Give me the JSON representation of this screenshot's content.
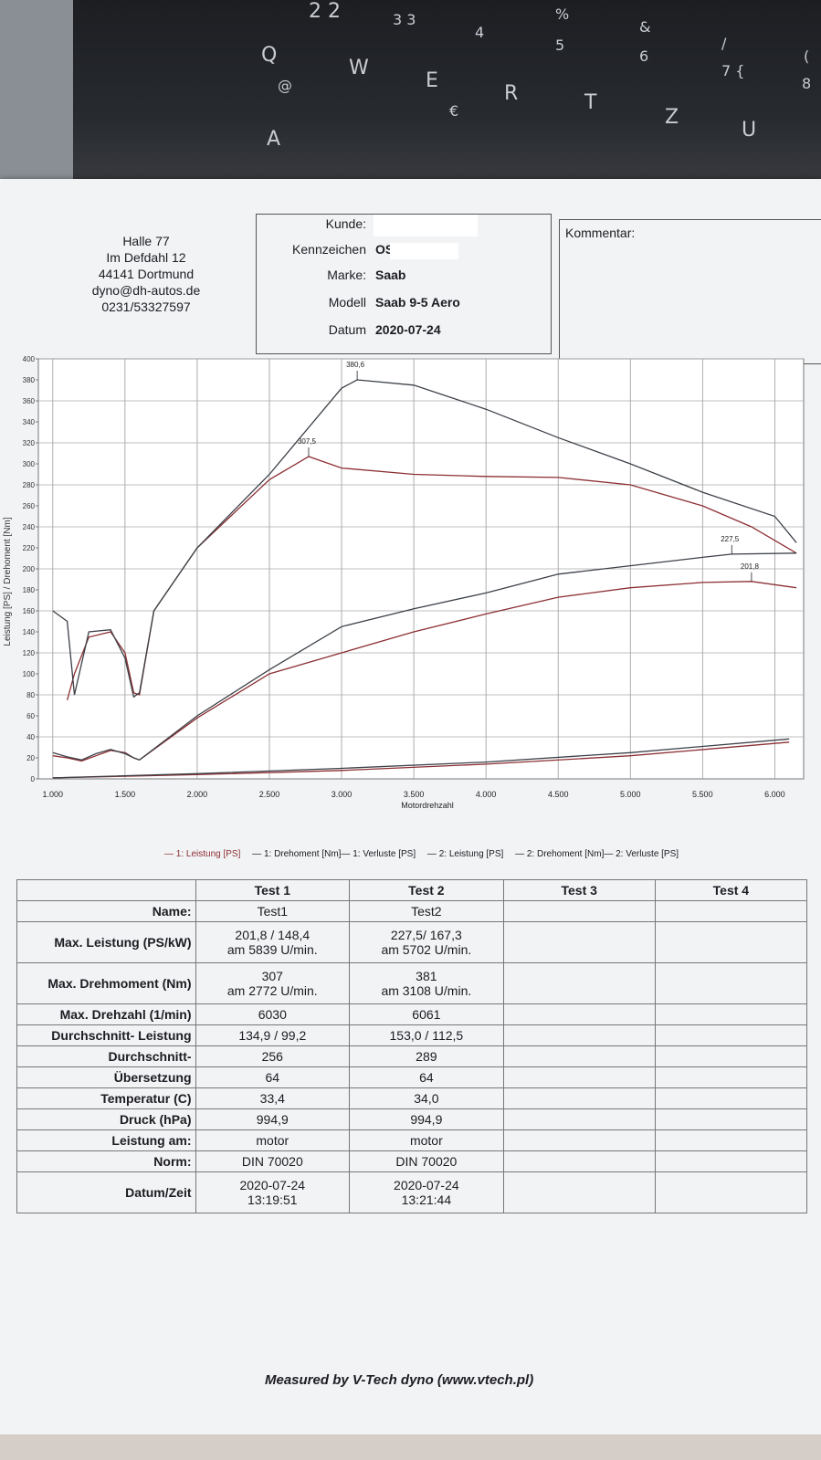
{
  "keyboard": {
    "keys": [
      "2 2",
      "Q",
      "@",
      "A",
      "W",
      "3 3",
      "E",
      "€",
      "4",
      "R",
      "%",
      "5",
      "T",
      "&",
      "6",
      "Z",
      "/",
      "7 {",
      "U",
      "(",
      "8"
    ]
  },
  "address": [
    "Halle 77",
    "Im Defdahl 12",
    "44141 Dortmund",
    "dyno@dh-autos.de",
    "0231/53327597"
  ],
  "vehicle": {
    "kunde_label": "Kunde:",
    "kennzeichen_label": "Kennzeichen",
    "kennzeichen_value": "OS",
    "marke_label": "Marke:",
    "marke_value": "Saab",
    "modell_label": "Modell",
    "modell_value": "Saab 9-5 Aero",
    "datum_label": "Datum",
    "datum_value": "2020-07-24"
  },
  "comment": {
    "label": "Kommentar:"
  },
  "chart_data": {
    "type": "line",
    "xlabel": "Motordrehzahl",
    "ylabel": "Leistung [PS] / Drehoment [Nm]",
    "xlim": [
      900,
      6200
    ],
    "ylim": [
      0,
      400
    ],
    "x_ticks": [
      "1.000",
      "1.500",
      "2.000",
      "2.500",
      "3.000",
      "3.500",
      "4.000",
      "4.500",
      "5.000",
      "5.500",
      "6.000"
    ],
    "x_tick_values": [
      1000,
      1500,
      2000,
      2500,
      3000,
      3500,
      4000,
      4500,
      5000,
      5500,
      6000
    ],
    "y_ticks": [
      0,
      20,
      40,
      60,
      80,
      100,
      120,
      140,
      160,
      180,
      200,
      220,
      240,
      260,
      280,
      300,
      320,
      340,
      360,
      380,
      400
    ],
    "grid": true,
    "series": [
      {
        "name": "1: Leistung [PS]",
        "color": "#8c2f33",
        "x": [
          1000,
          1100,
          1200,
          1300,
          1400,
          1500,
          1560,
          1600,
          2000,
          2500,
          3000,
          3500,
          4000,
          4500,
          5000,
          5500,
          5839,
          6150
        ],
        "y": [
          22,
          20,
          17,
          22,
          27,
          25,
          20,
          18,
          58,
          100,
          120,
          140,
          157,
          173,
          182,
          187,
          188,
          182
        ]
      },
      {
        "name": "1: Drehoment [Nm]",
        "color": "#8c2f33",
        "x": [
          1100,
          1150,
          1250,
          1400,
          1500,
          1560,
          1600,
          1700,
          2000,
          2500,
          2772,
          3000,
          3500,
          4000,
          4500,
          5000,
          5500,
          5839,
          6150
        ],
        "y": [
          75,
          100,
          135,
          140,
          120,
          82,
          80,
          160,
          220,
          285,
          307,
          296,
          290,
          288,
          287,
          280,
          260,
          240,
          215
        ]
      },
      {
        "name": "1: Verluste [PS]",
        "color": "#8c2f33",
        "x": [
          1000,
          2000,
          3000,
          4000,
          5000,
          6100
        ],
        "y": [
          1,
          4,
          8,
          14,
          22,
          35
        ]
      },
      {
        "name": "2: Leistung [PS]",
        "color": "#3c4148",
        "x": [
          1000,
          1100,
          1200,
          1300,
          1400,
          1500,
          1560,
          1600,
          2000,
          2500,
          3000,
          3500,
          4000,
          4500,
          5000,
          5500,
          5702,
          6150
        ],
        "y": [
          25,
          21,
          18,
          24,
          28,
          24,
          20,
          18,
          60,
          104,
          145,
          162,
          177,
          195,
          203,
          211,
          214,
          215
        ]
      },
      {
        "name": "2: Drehoment [Nm]",
        "color": "#3c4148",
        "x": [
          1000,
          1100,
          1150,
          1250,
          1400,
          1500,
          1560,
          1600,
          1700,
          2000,
          2500,
          3000,
          3108,
          3500,
          4000,
          4500,
          5000,
          5500,
          6000,
          6150
        ],
        "y": [
          160,
          150,
          80,
          140,
          142,
          115,
          78,
          82,
          160,
          220,
          290,
          372,
          380,
          375,
          352,
          325,
          300,
          273,
          250,
          225
        ]
      },
      {
        "name": "2: Verluste [PS]",
        "color": "#3c4148",
        "x": [
          1000,
          2000,
          3000,
          4000,
          5000,
          6100
        ],
        "y": [
          1,
          5,
          10,
          16,
          25,
          38
        ]
      }
    ],
    "annotations": [
      {
        "text": "380,6",
        "x": 3108,
        "y": 380
      },
      {
        "text": "307,5",
        "x": 2772,
        "y": 307
      },
      {
        "text": "227,5",
        "x": 5702,
        "y": 214
      },
      {
        "text": "201,8",
        "x": 5839,
        "y": 188
      }
    ]
  },
  "legend": [
    "— 1: Leistung [PS]",
    "— 1: Drehoment [Nm]— 1: Verluste [PS]",
    "— 2: Leistung [PS]",
    "— 2: Drehoment [Nm]— 2: Verluste [PS]"
  ],
  "results": {
    "headers": [
      "Test 1",
      "Test 2",
      "Test 3",
      "Test 4"
    ],
    "rows": [
      {
        "label": "Name:",
        "t1": "Test1",
        "t2": "Test2"
      },
      {
        "label": "Max. Leistung (PS/kW)",
        "t1": "201,8 / 148,4\nam 5839   U/min.",
        "t2": "227,5/ 167,3\nam 5702   U/min."
      },
      {
        "label": "Max. Drehmoment (Nm)",
        "t1": "307\nam 2772   U/min.",
        "t2": "381\nam 3108   U/min."
      },
      {
        "label": "Max. Drehzahl (1/min)",
        "t1": "6030",
        "t2": "6061"
      },
      {
        "label": "Durchschnitt- Leistung",
        "t1": "134,9 / 99,2",
        "t2": "153,0 / 112,5"
      },
      {
        "label": "Durchschnitt-",
        "t1": "256",
        "t2": "289"
      },
      {
        "label": "Übersetzung",
        "t1": "64",
        "t2": "64"
      },
      {
        "label": "Temperatur (C)",
        "t1": "33,4",
        "t2": "34,0"
      },
      {
        "label": "Druck (hPa)",
        "t1": "994,9",
        "t2": "994,9"
      },
      {
        "label": "Leistung am:",
        "t1": "motor",
        "t2": "motor"
      },
      {
        "label": "Norm:",
        "t1": "DIN 70020",
        "t2": "DIN 70020"
      },
      {
        "label": "Datum/Zeit",
        "t1": "2020-07-24\n13:19:51",
        "t2": "2020-07-24\n13:21:44"
      }
    ]
  },
  "footer": "Measured by V-Tech dyno (www.vtech.pl)"
}
